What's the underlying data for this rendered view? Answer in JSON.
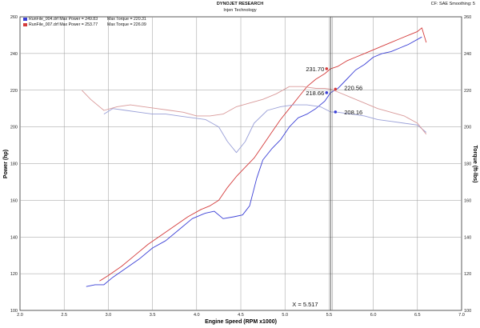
{
  "header": {
    "title": "DYNOJET RESEARCH",
    "subtitle": "Injen Technology",
    "correction": "CF: SAE  Smoothing: 5"
  },
  "legend": [
    {
      "file": "RunFile_004.drf Max Power = 249.83",
      "torque": "Max Torque = 220.31",
      "color": "#3a3fd6"
    },
    {
      "file": "RunFile_007.drf Max Power = 253.77",
      "torque": "Max Torque = 226.09",
      "color": "#d43b3b"
    }
  ],
  "chart_data": {
    "type": "line",
    "xlabel": "Engine Speed (RPM x1000)",
    "ylabel_left": "Power (hp)",
    "ylabel_right": "Torque (ft-lbs)",
    "xlim": [
      2.0,
      7.0
    ],
    "ylim": [
      100,
      260
    ],
    "x_ticks": [
      "2.0",
      "2.5",
      "3.0",
      "3.5",
      "4.0",
      "4.5",
      "5.0",
      "5.5",
      "6.0",
      "6.5",
      "7.0"
    ],
    "y_ticks": [
      "100",
      "120",
      "140",
      "160",
      "180",
      "200",
      "220",
      "240",
      "260"
    ],
    "grid": true,
    "cursor": {
      "x": 5.517,
      "label": "X = 5.517"
    },
    "series": [
      {
        "name": "RunFile_004.drf",
        "measure": "power",
        "color": "#3a3fd6",
        "x": [
          2.75,
          2.85,
          2.95,
          3.05,
          3.2,
          3.35,
          3.5,
          3.65,
          3.8,
          3.95,
          4.1,
          4.2,
          4.3,
          4.42,
          4.52,
          4.6,
          4.68,
          4.75,
          4.85,
          4.95,
          5.05,
          5.15,
          5.25,
          5.35,
          5.45,
          5.517,
          5.6,
          5.7,
          5.8,
          5.9,
          6.0,
          6.1,
          6.2,
          6.3,
          6.4,
          6.55
        ],
        "values": [
          113,
          114,
          114,
          118,
          123,
          128,
          134,
          138,
          144,
          150,
          153,
          154,
          150,
          151,
          152,
          157,
          172,
          182,
          188,
          193,
          200,
          205,
          207,
          210,
          214,
          218.66,
          221,
          226,
          231,
          234,
          238,
          240,
          241,
          243,
          245,
          249
        ]
      },
      {
        "name": "RunFile_007.drf",
        "measure": "power",
        "color": "#d43b3b",
        "x": [
          2.9,
          3.0,
          3.15,
          3.3,
          3.45,
          3.6,
          3.75,
          3.9,
          4.05,
          4.15,
          4.25,
          4.35,
          4.45,
          4.55,
          4.65,
          4.75,
          4.85,
          4.95,
          5.05,
          5.15,
          5.25,
          5.35,
          5.45,
          5.517,
          5.6,
          5.7,
          5.8,
          5.9,
          6.0,
          6.1,
          6.2,
          6.3,
          6.4,
          6.5,
          6.55,
          6.6
        ],
        "values": [
          116,
          119,
          124,
          130,
          136,
          141,
          146,
          151,
          155,
          157,
          160,
          167,
          173,
          178,
          183,
          190,
          197,
          204,
          210,
          216,
          222,
          226,
          229,
          231.7,
          233,
          236,
          238,
          240,
          242,
          244,
          246,
          248,
          250,
          252,
          254,
          246
        ]
      },
      {
        "name": "RunFile_004.drf",
        "measure": "torque",
        "color": "#9aa0d8",
        "x": [
          2.95,
          3.05,
          3.2,
          3.35,
          3.5,
          3.65,
          3.8,
          3.95,
          4.1,
          4.25,
          4.35,
          4.45,
          4.55,
          4.65,
          4.8,
          4.95,
          5.1,
          5.25,
          5.4,
          5.517,
          5.6,
          5.75,
          5.9,
          6.05,
          6.2,
          6.35,
          6.5,
          6.6
        ],
        "values": [
          207,
          210,
          209,
          208,
          207,
          207,
          206,
          205,
          204,
          200,
          192,
          186,
          192,
          202,
          209,
          211,
          212,
          212,
          211,
          208.16,
          208,
          207,
          206,
          204,
          203,
          202,
          201,
          197
        ]
      },
      {
        "name": "RunFile_007.drf",
        "measure": "torque",
        "color": "#d99a9a",
        "x": [
          2.7,
          2.8,
          2.95,
          3.1,
          3.25,
          3.4,
          3.55,
          3.7,
          3.85,
          4.0,
          4.15,
          4.3,
          4.45,
          4.6,
          4.75,
          4.9,
          5.05,
          5.2,
          5.35,
          5.45,
          5.517,
          5.6,
          5.75,
          5.9,
          6.05,
          6.2,
          6.35,
          6.5,
          6.6
        ],
        "values": [
          220,
          215,
          209,
          211,
          212,
          211,
          210,
          209,
          208,
          206,
          206,
          207,
          211,
          213,
          215,
          218,
          222,
          222,
          221,
          221,
          220.56,
          219,
          216,
          213,
          210,
          208,
          206,
          202,
          196
        ]
      }
    ],
    "cursor_values": [
      {
        "value": "231.70",
        "color": "#d43b3b"
      },
      {
        "value": "220.56",
        "color": "#d43b3b"
      },
      {
        "value": "218.66",
        "color": "#3a3fd6"
      },
      {
        "value": "208.16",
        "color": "#3a3fd6"
      }
    ]
  }
}
